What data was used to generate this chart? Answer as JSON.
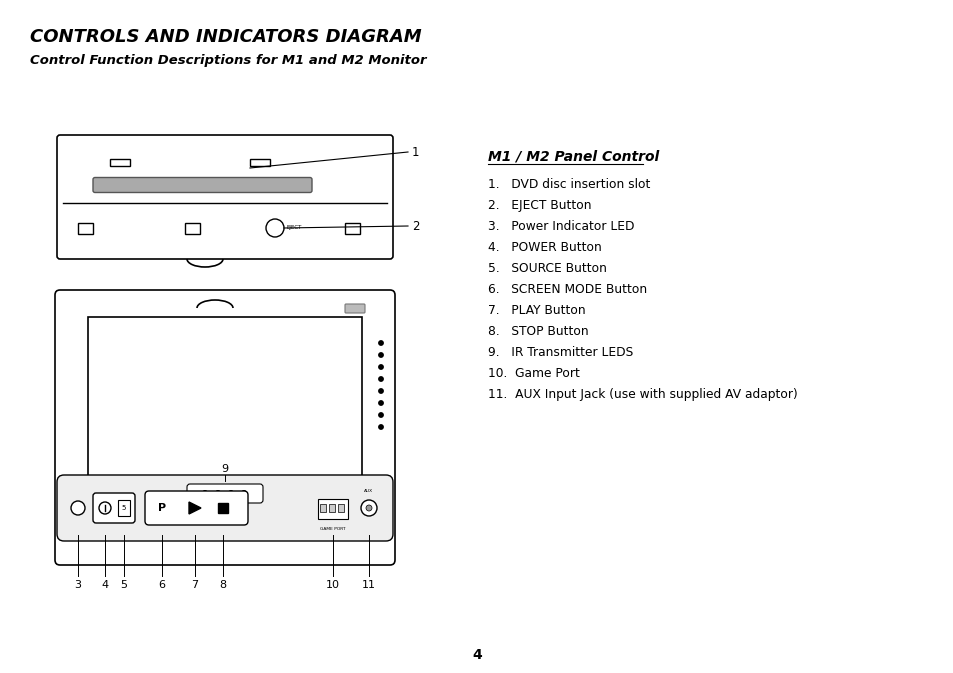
{
  "title": "CONTROLS AND INDICATORS DIAGRAM",
  "subtitle": "Control Function Descriptions for M1 and M2 Monitor",
  "panel_title": "M1 / M2 Panel Control",
  "items": [
    "1.   DVD disc insertion slot",
    "2.   EJECT Button",
    "3.   Power Indicator LED",
    "4.   POWER Button",
    "5.   SOURCE Button",
    "6.   SCREEN MODE Button",
    "7.   PLAY Button",
    "8.   STOP Button",
    "9.   IR Transmitter LEDS",
    "10.  Game Port",
    "11.  AUX Input Jack (use with supplied AV adaptor)"
  ],
  "page_number": "4",
  "bg_color": "#ffffff",
  "text_color": "#000000",
  "line_color": "#000000"
}
